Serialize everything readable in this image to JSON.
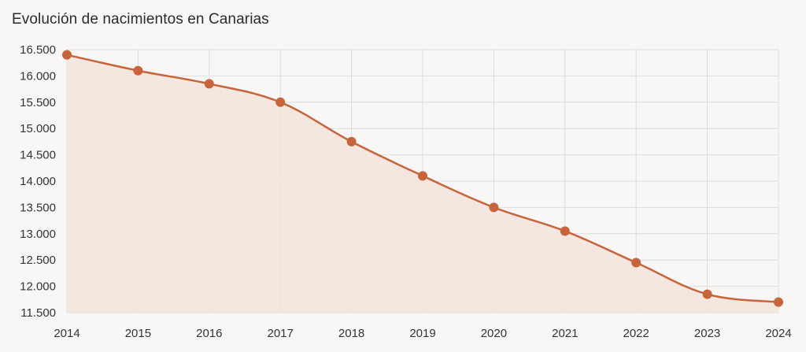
{
  "chart_data": {
    "type": "area",
    "title": "Evolución de nacimientos en Canarias",
    "xlabel": "",
    "ylabel": "",
    "categories": [
      "2014",
      "2015",
      "2016",
      "2017",
      "2018",
      "2019",
      "2020",
      "2021",
      "2022",
      "2023",
      "2024"
    ],
    "series": [
      {
        "values": [
          16400,
          16100,
          15850,
          15500,
          14750,
          14100,
          13500,
          13050,
          12450,
          11850,
          11700
        ]
      }
    ],
    "ylim": [
      11500,
      16500
    ],
    "yticks": [
      11500,
      12000,
      12500,
      13000,
      13500,
      14000,
      14500,
      15000,
      15500,
      16000,
      16500
    ],
    "ytick_labels": [
      "11.500",
      "12.000",
      "12.500",
      "13.000",
      "13.500",
      "14.000",
      "14.500",
      "15.000",
      "15.500",
      "16.000",
      "16.500"
    ],
    "grid": true,
    "legend": "none",
    "colors": {
      "line": "#c8643c",
      "fill": "#f3e4dc",
      "grid": "#dcdcdc",
      "background": "#f8f7f5"
    }
  }
}
